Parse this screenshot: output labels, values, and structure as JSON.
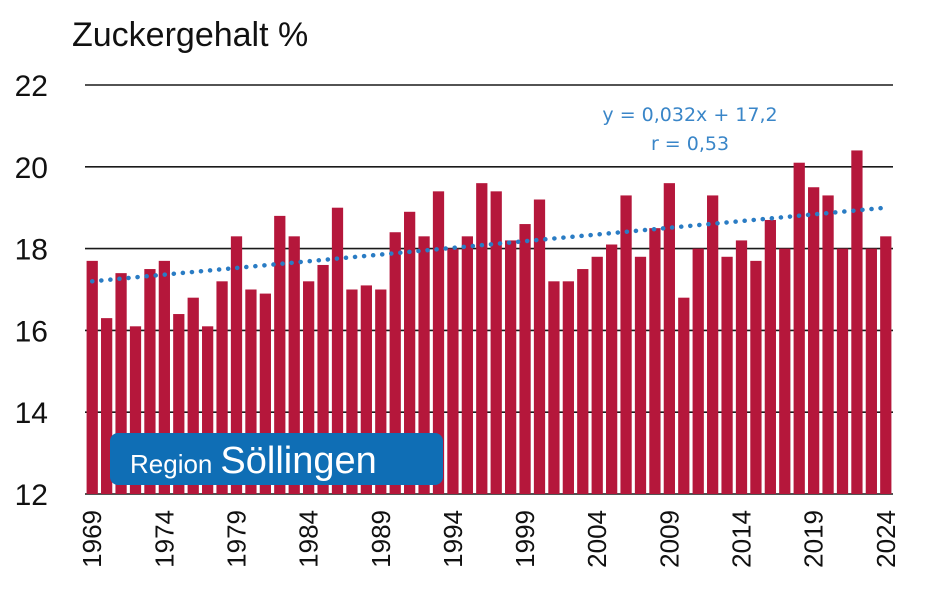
{
  "chart_data": {
    "type": "bar",
    "title": "Zuckergehalt %",
    "xlabel": "",
    "ylabel": "",
    "ylim": [
      12,
      22
    ],
    "yticks": [
      "12",
      "14",
      "16",
      "18",
      "20",
      "22"
    ],
    "grid": true,
    "bar_color": "#b5173b",
    "trend_color": "#2a7cc4",
    "x_start": 1969,
    "xtick_labels": [
      "1969",
      "1974",
      "1979",
      "1984",
      "1989",
      "1994",
      "1999",
      "2004",
      "2009",
      "2014",
      "2019",
      "2024"
    ],
    "values": [
      17.7,
      16.3,
      17.4,
      16.1,
      17.5,
      17.7,
      16.4,
      16.8,
      16.1,
      17.2,
      18.3,
      17.0,
      16.9,
      18.8,
      18.3,
      17.2,
      17.6,
      19.0,
      17.0,
      17.1,
      17.0,
      18.4,
      18.9,
      18.3,
      19.4,
      18.0,
      18.3,
      19.6,
      19.4,
      18.2,
      18.6,
      19.2,
      17.2,
      17.2,
      17.5,
      17.8,
      18.1,
      19.3,
      17.8,
      18.5,
      19.6,
      16.8,
      18.0,
      19.3,
      17.8,
      18.2,
      17.7,
      18.7,
      18.0,
      20.1,
      19.5,
      19.3,
      18.0,
      20.4,
      18.0,
      18.3
    ],
    "trend": {
      "type": "linear",
      "style": "dotted",
      "start_value": 17.2,
      "end_value": 19.0,
      "equation": "y = 0,032x + 17,2",
      "r_label": "r = 0,53"
    },
    "badge": {
      "small": "Region",
      "big": "Söllingen",
      "color": "#0f6eb5"
    }
  }
}
